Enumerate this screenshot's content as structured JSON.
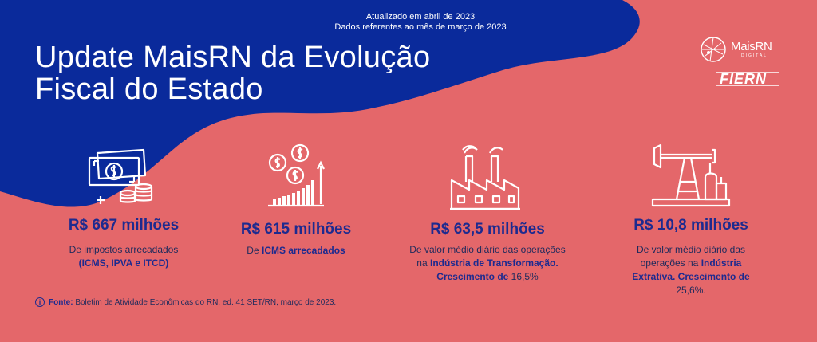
{
  "header": {
    "updated_line1": "Atualizado em abril de 2023",
    "updated_line2": "Dados referentes ao mês de março de 2023",
    "title_line1": "Update MaisRN da Evolução",
    "title_line2": "Fiscal do Estado"
  },
  "logos": {
    "maisrn": "MaisRN",
    "maisrn_sub": "DIGITAL",
    "fiern": "FIERN"
  },
  "colors": {
    "background_coral": "#e4676a",
    "wave_blue": "#0a2a9b",
    "value_blue": "#1d2a8f",
    "icon_white": "#ffffff"
  },
  "cards": [
    {
      "icon": "money-coins-icon",
      "value": "R$ 667 milhões",
      "desc_pre": "De impostos arrecadados ",
      "desc_bold": "(ICMS, IPVA e ITCD)",
      "desc_post": ""
    },
    {
      "icon": "coins-growth-chart-icon",
      "value": "R$ 615 milhões",
      "desc_pre": "De ",
      "desc_bold": "ICMS arrecadados",
      "desc_post": ""
    },
    {
      "icon": "factory-icon",
      "value": "R$ 63,5 milhões",
      "desc_pre": "De valor médio diário das operações na ",
      "desc_bold": "Indústria de Transformação. Crescimento de",
      "desc_post": " 16,5%"
    },
    {
      "icon": "oil-pump-icon",
      "value": "R$ 10,8 milhões",
      "desc_pre": "De valor médio diário das operações na ",
      "desc_bold": "Indústria Extrativa. Crescimento de",
      "desc_post": " 25,6%."
    }
  ],
  "source": {
    "label": "Fonte:",
    "text": " Boletim de Atividade Econômicas do RN, ed. 41 SET/RN, março de 2023."
  }
}
